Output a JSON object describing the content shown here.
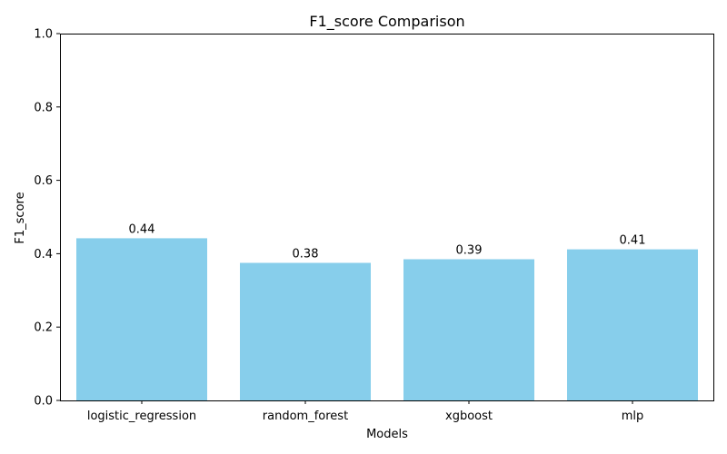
{
  "chart_data": {
    "type": "bar",
    "title": "F1_score Comparison",
    "xlabel": "Models",
    "ylabel": "F1_score",
    "categories": [
      "logistic_regression",
      "random_forest",
      "xgboost",
      "mlp"
    ],
    "values": [
      0.442,
      0.375,
      0.385,
      0.412
    ],
    "data_labels": [
      "0.44",
      "0.38",
      "0.39",
      "0.41"
    ],
    "ylim": [
      0,
      1
    ],
    "yticks": [
      "0.0",
      "0.2",
      "0.4",
      "0.6",
      "0.8",
      "1.0"
    ],
    "grid": false,
    "bar_color": "#87CEEB"
  }
}
